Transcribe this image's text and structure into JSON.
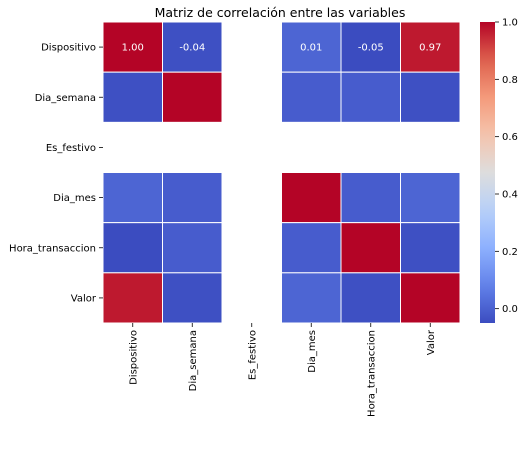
{
  "chart_data": {
    "type": "heatmap",
    "title": "Matriz de correlación entre las variables",
    "xlabel": "",
    "ylabel": "",
    "variables": [
      "Dispositivo",
      "Dia_semana",
      "Es_festivo",
      "Dia_mes",
      "Hora_transaccion",
      "Valor"
    ],
    "matrix": [
      [
        1.0,
        -0.04,
        null,
        0.01,
        -0.05,
        0.97
      ],
      [
        -0.04,
        1.0,
        null,
        -0.01,
        -0.01,
        -0.04
      ],
      [
        null,
        null,
        null,
        null,
        null,
        null
      ],
      [
        0.01,
        -0.01,
        null,
        1.0,
        -0.01,
        0.01
      ],
      [
        -0.05,
        -0.01,
        null,
        -0.01,
        1.0,
        -0.04
      ],
      [
        0.97,
        -0.04,
        null,
        0.01,
        -0.04,
        1.0
      ]
    ],
    "annotated_row": 0,
    "annotations": [
      "1.00",
      "-0.04",
      "",
      "0.01",
      "-0.05",
      "0.97"
    ],
    "colormap": "coolwarm",
    "vmin": -0.05,
    "vmax": 1.0,
    "colorbar_ticks": [
      "0.0",
      "0.2",
      "0.4",
      "0.6",
      "0.8",
      "1.0"
    ],
    "grid_line_color": "#ffffff"
  }
}
